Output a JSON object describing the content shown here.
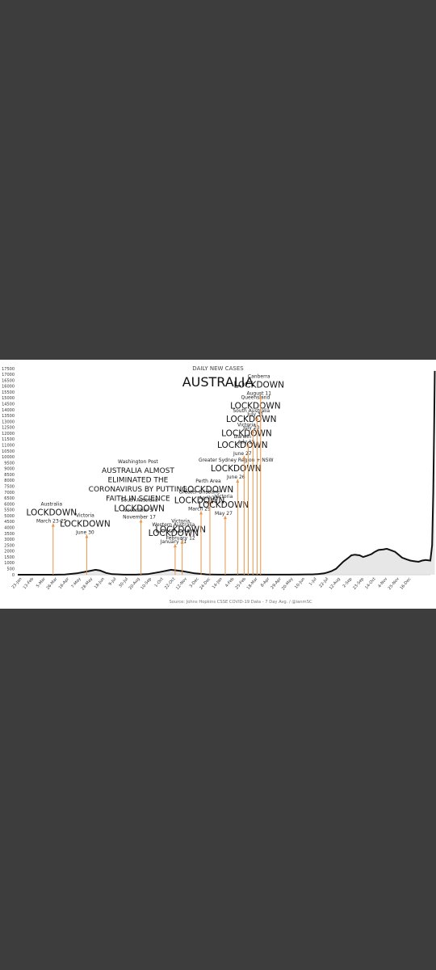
{
  "chart_data": {
    "type": "line",
    "subtitle": "DAILY NEW CASES",
    "title": "AUSTRALIA",
    "source": "Source: Johns Hopkins CSSE COVID-19 Data - 7 Day Avg. / @ianmSC",
    "ylim": [
      0,
      17500
    ],
    "y_ticks": [
      0,
      500,
      1000,
      1500,
      2000,
      2500,
      3000,
      3500,
      4000,
      4500,
      5000,
      5500,
      6000,
      6500,
      7000,
      7500,
      8000,
      8500,
      9000,
      9500,
      10000,
      10500,
      11000,
      11500,
      12000,
      12500,
      13000,
      13500,
      14000,
      14500,
      15000,
      15500,
      16000,
      16500,
      17000,
      17500
    ],
    "x_ticks": [
      "23-Jan",
      "13-Feb",
      "5-Mar",
      "26-Mar",
      "16-Apr",
      "7-May",
      "28-May",
      "18-Jun",
      "9-Jul",
      "30-Jul",
      "20-Aug",
      "10-Sep",
      "1-Oct",
      "22-Oct",
      "12-Nov",
      "3-Dec",
      "24-Dec",
      "14-Jan",
      "4-Feb",
      "25-Feb",
      "18-Mar",
      "8-Apr",
      "29-Apr",
      "20-May",
      "10-Jun",
      "1-Jul",
      "22-Jul",
      "12-Aug",
      "2-Sep",
      "23-Sep",
      "14-Oct",
      "4-Nov",
      "25-Nov",
      "16-Dec"
    ],
    "grid": false,
    "line_color": "#111111",
    "fill_color": "#dddddd",
    "marker_color": "#e8944a",
    "series": [
      {
        "x": [
          0,
          1,
          2,
          3,
          4,
          5,
          6,
          6.6,
          7,
          7.5,
          8,
          9,
          10,
          11,
          12,
          13,
          14,
          15,
          16,
          17,
          18,
          19,
          19.5,
          20,
          21,
          22,
          23,
          24,
          25,
          25.5,
          26,
          26.3,
          26.6,
          27,
          27.3,
          27.6,
          28,
          28.3,
          28.6,
          29,
          29.3,
          29.6,
          30,
          30.3,
          30.6,
          31,
          31.3,
          31.6,
          32,
          32.3,
          32.6,
          33,
          33.3,
          33.6,
          34,
          34.3,
          34.6,
          35
        ],
        "values": [
          0,
          0,
          0,
          0,
          20,
          120,
          300,
          420,
          350,
          150,
          50,
          10,
          10,
          50,
          220,
          420,
          300,
          120,
          30,
          10,
          10,
          15,
          20,
          15,
          10,
          10,
          10,
          15,
          30,
          60,
          120,
          200,
          300,
          500,
          800,
          1100,
          1400,
          1650,
          1700,
          1650,
          1500,
          1600,
          1750,
          1950,
          2100,
          2150,
          2200,
          2100,
          1950,
          1700,
          1450,
          1300,
          1200,
          1150,
          1100,
          1200,
          1250,
          1200
        ]
      }
    ],
    "series_2": [],
    "annotations": [
      {
        "x": 3.0,
        "top": 4350,
        "pre": "Australia",
        "lock": "LOCKDOWN",
        "date": "March 23-25"
      },
      {
        "x": 5.85,
        "top": 3400,
        "pre": "Victoria",
        "lock": "LOCKDOWN",
        "date": "June 30"
      },
      {
        "x": 10.45,
        "top": 4700,
        "pre": "South Australia",
        "lock": "LOCKDOWN",
        "date": "November 17"
      },
      {
        "x": 13.35,
        "top": 2600,
        "pre": "Western Australia",
        "lock": "LOCKDOWN",
        "date": "January 31"
      },
      {
        "x": 13.95,
        "top": 2900,
        "pre": "Victoria",
        "lock": "LOCKDOWN",
        "date": "February 12"
      },
      {
        "x": 15.55,
        "top": 5400,
        "pre": "Greater Brisbane",
        "lock": "LOCKDOWN",
        "date": "March 29"
      },
      {
        "x": 16.3,
        "top": 6300,
        "pre": "Perth Area",
        "lock": "LOCKDOWN",
        "date": "April 23"
      },
      {
        "x": 17.6,
        "top": 5000,
        "pre": "Victoria",
        "lock": "LOCKDOWN",
        "date": "May 27"
      },
      {
        "x": 18.65,
        "top": 8100,
        "pre": "Greater Sydney Region + NSW",
        "lock": "LOCKDOWN",
        "date": "June 26"
      },
      {
        "x": 19.2,
        "top": 10100,
        "pre": "Darwin",
        "lock": "LOCKDOWN",
        "date": "June 27"
      },
      {
        "x": 19.55,
        "top": 11100,
        "pre": "Victoria",
        "lock": "LOCKDOWN",
        "date": "July 15"
      },
      {
        "x": 19.95,
        "top": 12300,
        "pre": "South Australia",
        "lock": "LOCKDOWN",
        "date": "July 20"
      },
      {
        "x": 20.3,
        "top": 13400,
        "pre": "Queensland",
        "lock": "LOCKDOWN",
        "date": "July 31"
      },
      {
        "x": 20.6,
        "top": 15200,
        "pre": "Canberra",
        "lock": "LOCKDOWN",
        "date": "August 11"
      }
    ],
    "headline": {
      "pre": "Washington Post",
      "lines": [
        "AUSTRALIA ALMOST",
        "ELIMINATED THE",
        "CORONAVIRUS BY PUTTING",
        "FAITH IN SCIENCE"
      ],
      "date": "November 5"
    }
  }
}
